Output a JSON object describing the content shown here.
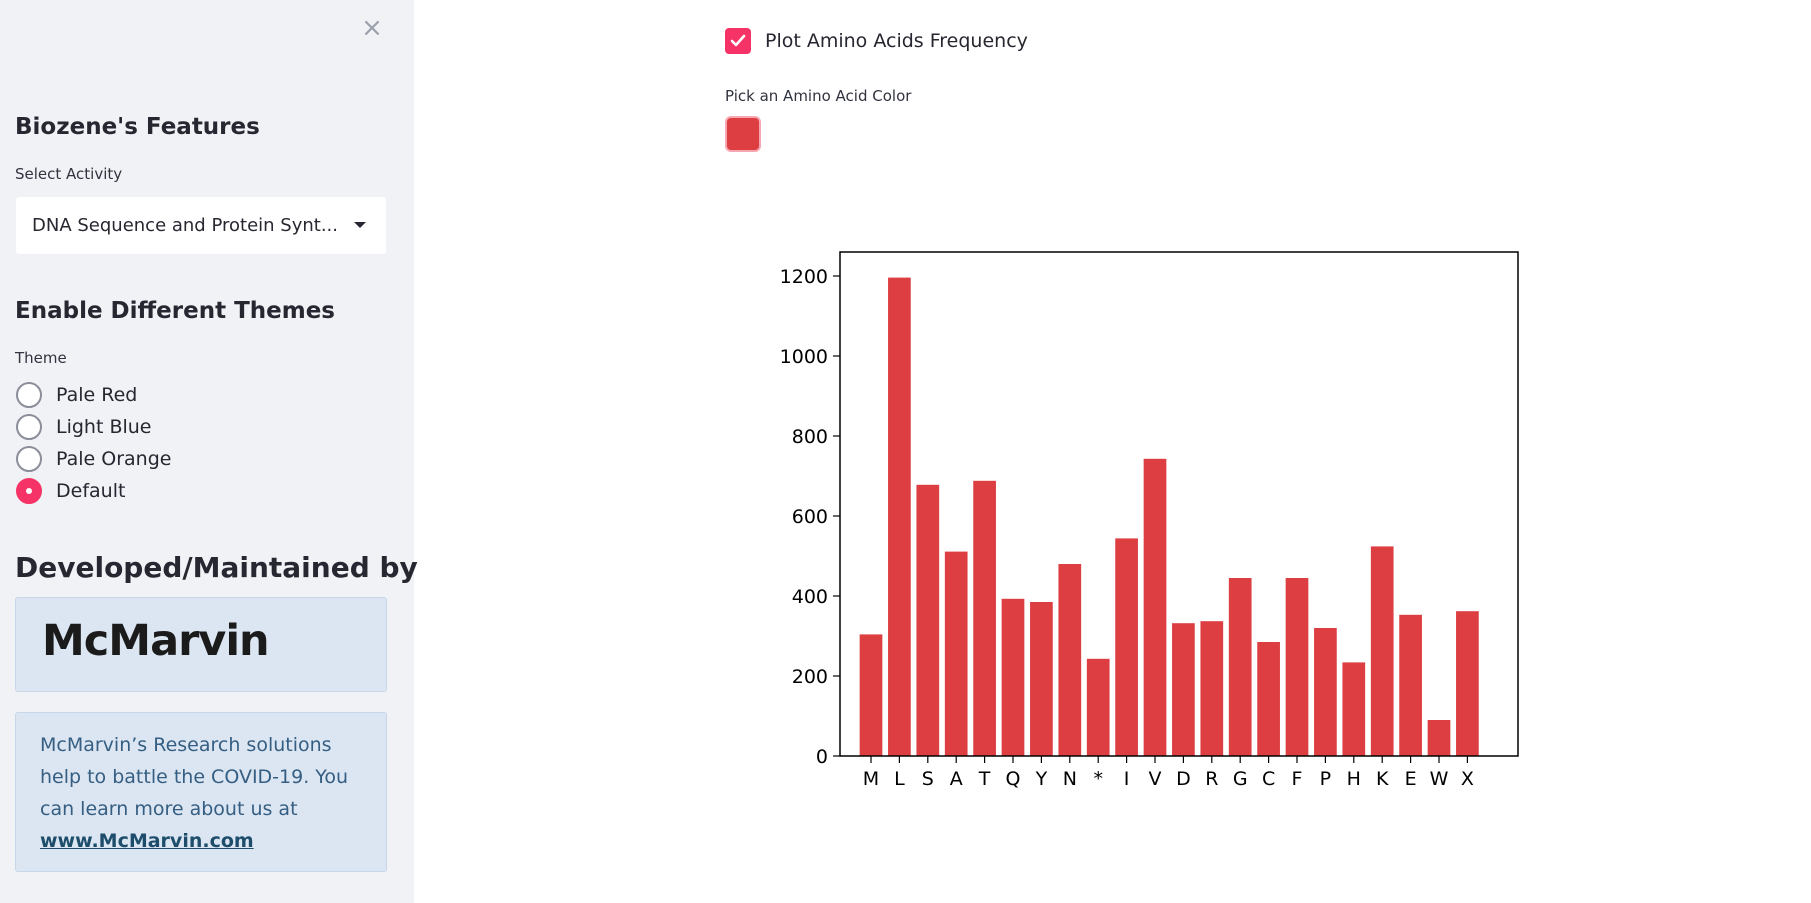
{
  "sidebar": {
    "close_symbol": "×",
    "features_heading": "Biozene's Features",
    "select_label": "Select Activity",
    "select_value": "DNA Sequence and Protein Synt...",
    "themes_heading": "Enable Different Themes",
    "theme_label": "Theme",
    "theme_options": [
      "Pale Red",
      "Light Blue",
      "Pale Orange",
      "Default"
    ],
    "theme_selected": "Default",
    "developed_heading": "Developed/Maintained by",
    "logo_text": "McMarvin",
    "info_text": "McMarvin’s Research solutions help to battle the COVID-19. You can learn more about us at",
    "info_link": "www.McMarvin.com"
  },
  "main": {
    "checkbox_label": "Plot Amino Acids Frequency",
    "checkbox_checked": true,
    "picker_label": "Pick an Amino Acid Color",
    "picker_color": "#dc3e42"
  },
  "colors": {
    "accent": "#f63366",
    "bar": "#dc3e42",
    "sidebar_bg": "#f0f2f6",
    "info_bg": "#dbe6f2"
  },
  "icons": {
    "close": "close-icon",
    "caret": "chevron-down-icon",
    "check": "checkmark-icon"
  },
  "chart_data": {
    "type": "bar",
    "categories": [
      "M",
      "L",
      "S",
      "A",
      "T",
      "Q",
      "Y",
      "N",
      "*",
      "I",
      "V",
      "D",
      "R",
      "G",
      "C",
      "F",
      "P",
      "H",
      "K",
      "E",
      "W",
      "X"
    ],
    "values": [
      304,
      1196,
      678,
      511,
      688,
      393,
      385,
      480,
      243,
      544,
      743,
      332,
      337,
      445,
      285,
      445,
      320,
      234,
      524,
      353,
      90,
      362
    ],
    "xlabel": "",
    "ylabel": "",
    "ylim": [
      0,
      1260
    ],
    "yticks": [
      0,
      200,
      400,
      600,
      800,
      1000,
      1200
    ],
    "grid": false
  }
}
